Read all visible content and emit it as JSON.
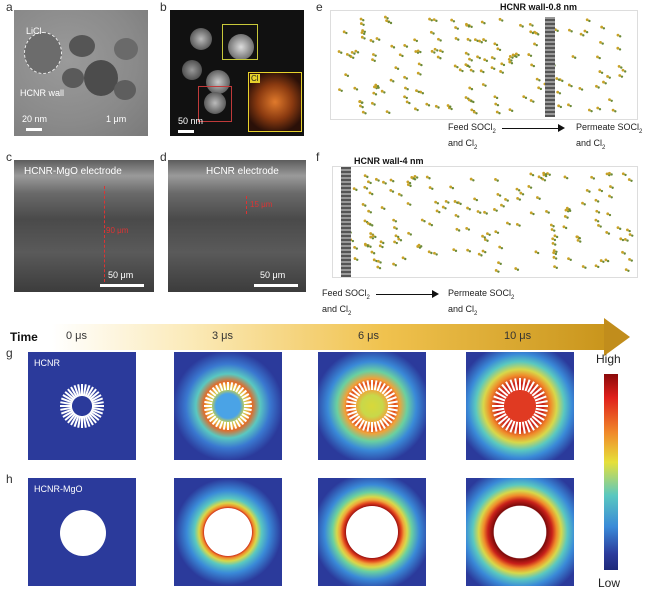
{
  "panels": {
    "a": {
      "label": "a",
      "licl": "LiCl",
      "wall": "HCNR wall",
      "scale_small": "20 nm",
      "scale_large": "1 μm"
    },
    "b": {
      "label": "b",
      "scale": "50 nm",
      "inset": "Cl"
    },
    "c": {
      "label": "c",
      "title": "HCNR-MgO electrode",
      "thickness": "90 μm",
      "scale": "50 μm"
    },
    "d": {
      "label": "d",
      "title": "HCNR electrode",
      "thickness": "15 μm",
      "scale": "50 μm"
    },
    "e": {
      "label": "e",
      "title": "HCNR wall-0.8 nm",
      "feed_line1": "Feed SOCl",
      "feed_sub": "2",
      "feed_line2": "and Cl",
      "feed_sub2": "2",
      "perm_line1": "Permeate SOCl",
      "perm_sub": "2",
      "perm_line2": "and Cl",
      "perm_sub2": "2"
    },
    "f": {
      "label": "f",
      "title": "HCNR wall-4 nm",
      "feed_line1": "Feed SOCl",
      "feed_sub": "2",
      "feed_line2": "and Cl",
      "feed_sub2": "2",
      "perm_line1": "Permeate SOCl",
      "perm_sub": "2",
      "perm_line2": "and Cl",
      "perm_sub2": "2"
    },
    "g": {
      "label": "g",
      "row": "HCNR"
    },
    "h": {
      "label": "h",
      "row": "HCNR-MgO"
    }
  },
  "timeline": {
    "title": "Time",
    "t0": "0 μs",
    "t1": "3 μs",
    "t2": "6 μs",
    "t3": "10 μs"
  },
  "colorbar": {
    "high": "High",
    "low": "Low"
  },
  "colors": {
    "sim_bg": "#2b3a9b",
    "arrow": "#c9a227",
    "hot": "#d6261c",
    "cold": "#2b3a9b"
  }
}
